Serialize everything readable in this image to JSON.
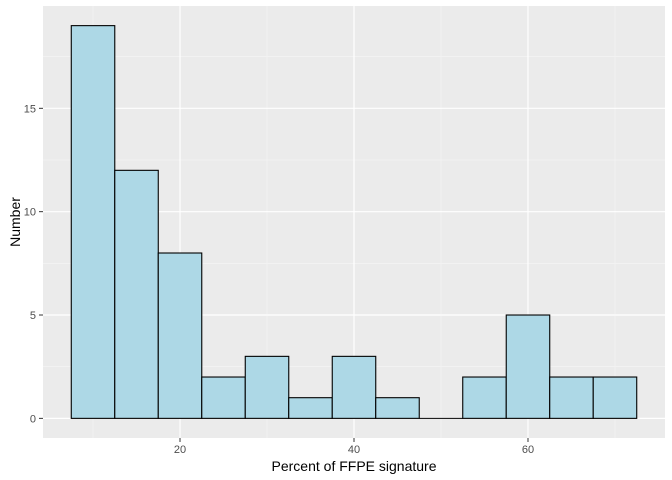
{
  "chart_data": {
    "type": "bar",
    "subtype": "histogram",
    "title": "",
    "xlabel": "Percent of FFPE signature",
    "ylabel": "Number",
    "bins": [
      {
        "x0": 7.5,
        "x1": 12.5,
        "count": 19
      },
      {
        "x0": 12.5,
        "x1": 17.5,
        "count": 12
      },
      {
        "x0": 17.5,
        "x1": 22.5,
        "count": 8
      },
      {
        "x0": 22.5,
        "x1": 27.5,
        "count": 2
      },
      {
        "x0": 27.5,
        "x1": 32.5,
        "count": 3
      },
      {
        "x0": 32.5,
        "x1": 37.5,
        "count": 1
      },
      {
        "x0": 37.5,
        "x1": 42.5,
        "count": 3
      },
      {
        "x0": 42.5,
        "x1": 47.5,
        "count": 1
      },
      {
        "x0": 47.5,
        "x1": 52.5,
        "count": 0
      },
      {
        "x0": 52.5,
        "x1": 57.5,
        "count": 2
      },
      {
        "x0": 57.5,
        "x1": 62.5,
        "count": 5
      },
      {
        "x0": 62.5,
        "x1": 67.5,
        "count": 2
      },
      {
        "x0": 67.5,
        "x1": 72.5,
        "count": 2
      }
    ],
    "xlim": [
      4.25,
      75.75
    ],
    "ylim": [
      -0.95,
      19.95
    ],
    "x_ticks": [
      20,
      40,
      60
    ],
    "y_ticks": [
      0,
      5,
      10,
      15
    ],
    "grid": true,
    "colors": {
      "bar_fill": "#add8e6",
      "bar_stroke": "#000000",
      "panel_background": "#ebebeb",
      "grid_major": "#ffffff"
    }
  }
}
